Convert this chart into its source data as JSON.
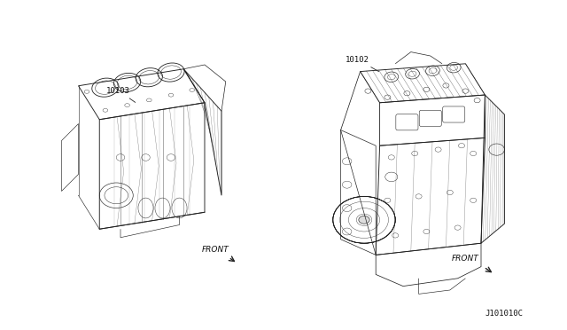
{
  "background_color": "#ffffff",
  "label_left_part": "10103",
  "label_right_part": "10102",
  "front_left_text": "FRONT",
  "front_right_text": "FRONT",
  "diagram_id": "J101010C",
  "fig_width": 6.4,
  "fig_height": 3.72,
  "dpi": 100,
  "line_color": "#222222",
  "text_color": "#111111",
  "font_size_label": 6.5,
  "font_size_front": 6.5,
  "font_size_id": 6.5,
  "lw": 0.55
}
